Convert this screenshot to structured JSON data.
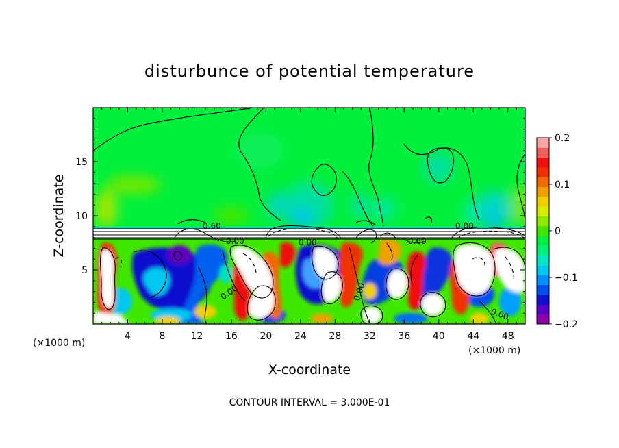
{
  "chart_data": {
    "type": "heatmap",
    "title": "disturbunce of potential temperature",
    "xlabel": "X-coordinate",
    "ylabel": "Z-coordinate",
    "x_unit": "(×1000 m)",
    "x_unit_right": "(×1000 m)",
    "x_ticks": [
      "4",
      "8",
      "12",
      "16",
      "20",
      "24",
      "28",
      "32",
      "36",
      "40",
      "44",
      "48"
    ],
    "x_tick_values": [
      4,
      8,
      12,
      16,
      20,
      24,
      28,
      32,
      36,
      40,
      44,
      48
    ],
    "xlim": [
      0,
      50
    ],
    "y_ticks": [
      "5",
      "10",
      "15"
    ],
    "y_tick_values": [
      5,
      10,
      15
    ],
    "ylim": [
      0,
      20
    ],
    "colorbar": {
      "ticks": [
        "0.2",
        "0.1",
        "0",
        "−0.1",
        "−0.2"
      ],
      "tick_values": [
        0.2,
        0.1,
        0,
        -0.1,
        -0.2
      ],
      "range": [
        -0.2,
        0.2
      ],
      "colors": [
        "#8b00a8",
        "#5a00c8",
        "#1010d0",
        "#0050f0",
        "#0090ff",
        "#00c8f0",
        "#00e8c0",
        "#00f080",
        "#00f040",
        "#40e800",
        "#90e800",
        "#d8f000",
        "#f0d000",
        "#f0a000",
        "#f06a00",
        "#f03000",
        "#f01010",
        "#f06060",
        "#f8a8a8"
      ]
    },
    "contour_labels": [
      "0.60",
      "0.00",
      "0.00",
      "0.00",
      "0.60",
      "0.00",
      "0.00",
      "0.00"
    ],
    "contour_interval_note": "CONTOUR INTERVAL = 3.000E-01"
  }
}
